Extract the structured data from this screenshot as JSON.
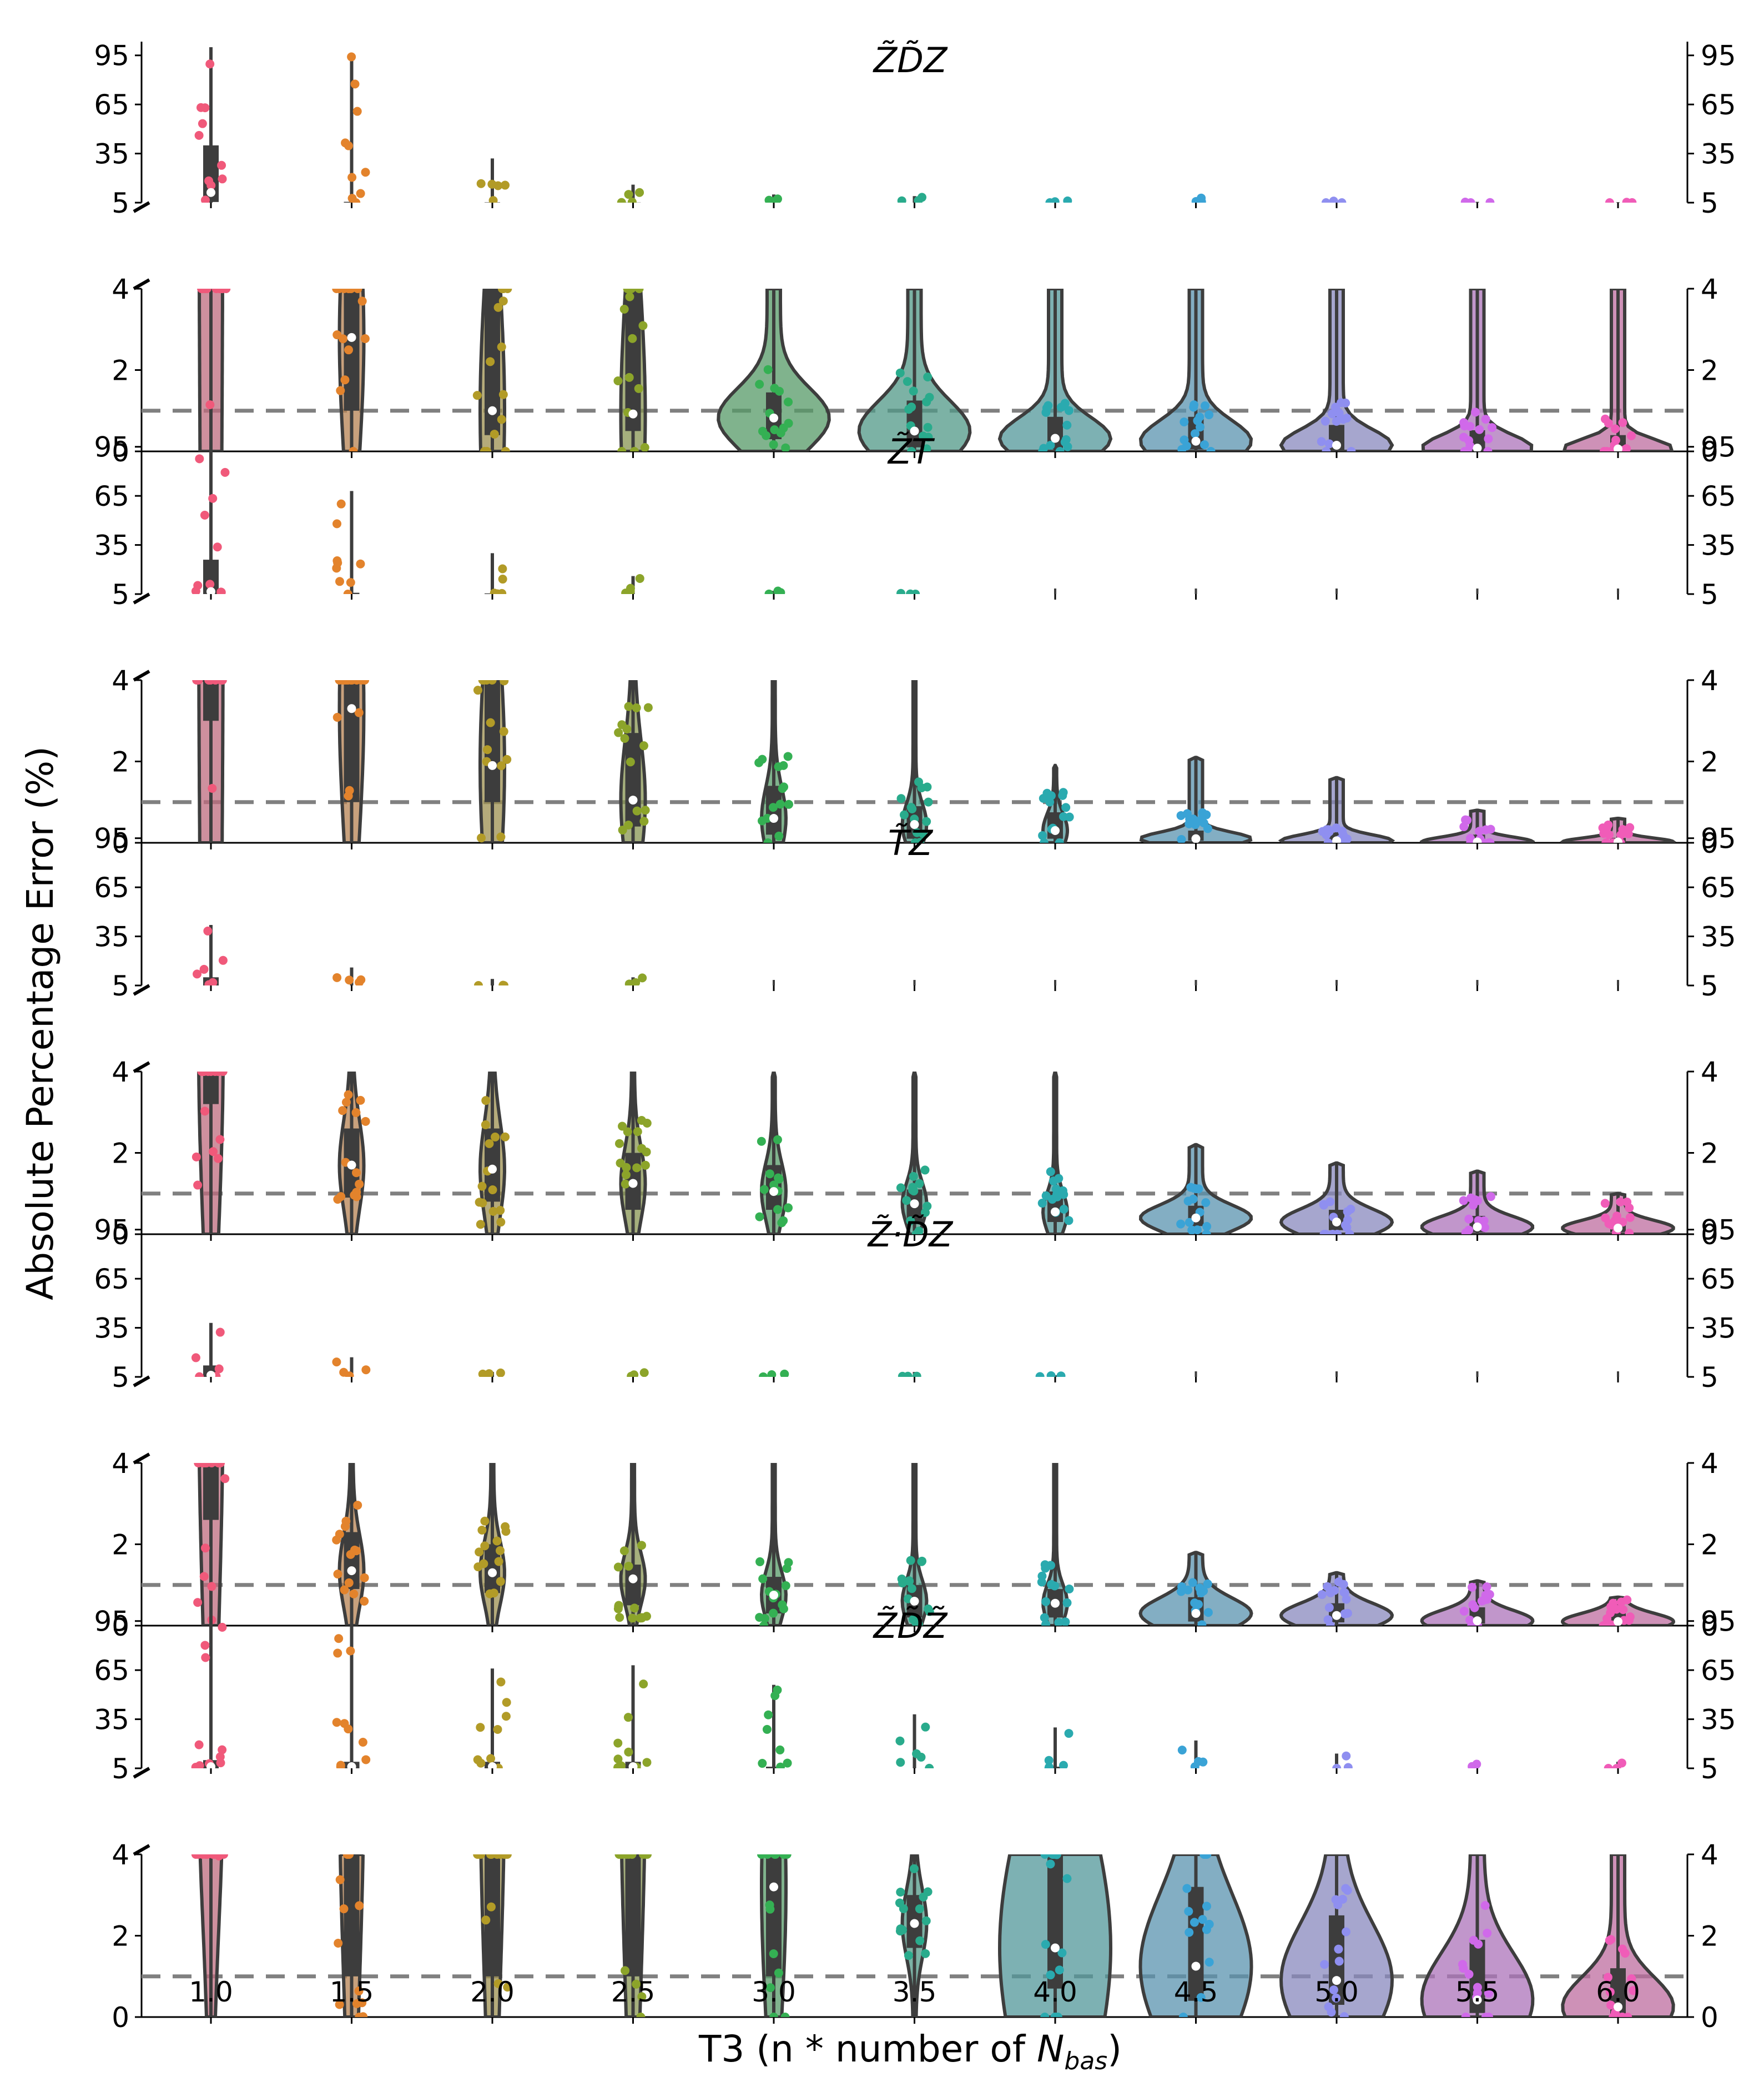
{
  "chart_data": {
    "type": "violin",
    "ylabel": "Absolute Percentage Error (%)",
    "xlabel_main": "T3 (n * number of ",
    "xlabel_sym": "N",
    "xlabel_sub": "bas",
    "xlabel_close": ")",
    "x_categories": [
      "1.0",
      "1.5",
      "2.0",
      "2.5",
      "3.0",
      "3.5",
      "4.0",
      "4.5",
      "5.0",
      "5.5",
      "6.0"
    ],
    "upper_ylim": [
      5,
      100
    ],
    "upper_ticks": [
      "95",
      "65",
      "35",
      "5"
    ],
    "lower_ylim": [
      0,
      4
    ],
    "lower_ticks": [
      "4",
      "2",
      "0"
    ],
    "reference_line": 1,
    "colors": [
      "#f0597a",
      "#e3832c",
      "#b29b27",
      "#8ca42a",
      "#34b053",
      "#29ab8c",
      "#2aaaaf",
      "#3aa3d6",
      "#8f8ff0",
      "#d069ea",
      "#f05cb8"
    ],
    "panels": [
      {
        "title": "Z̃D̃Z",
        "medians": [
          11.2,
          2.8,
          1.0,
          0.92,
          0.82,
          0.5,
          0.32,
          0.25,
          0.15,
          0.08,
          0.06
        ],
        "q1": [
          5.4,
          1.0,
          0.4,
          0.5,
          0.3,
          0.1,
          0.05,
          0.05,
          0.04,
          0.02,
          0.02
        ],
        "q3": [
          40,
          5.5,
          5.2,
          5.1,
          1.45,
          1.25,
          0.85,
          0.85,
          0.65,
          0.52,
          0.4
        ],
        "maxima": [
          100,
          96,
          32,
          16,
          10,
          9,
          8,
          8,
          6,
          5.5,
          5.3
        ],
        "violin_fill": [
          false,
          false,
          false,
          false,
          true,
          true,
          true,
          true,
          true,
          true,
          true
        ]
      },
      {
        "title": "Z̃T",
        "medians": [
          6.5,
          3.3,
          1.9,
          1.05,
          0.6,
          0.45,
          0.3,
          0.1,
          0.05,
          0.02,
          0.02
        ],
        "q1": [
          3.0,
          1.0,
          1.0,
          0.4,
          0.2,
          0.1,
          0.1,
          0.05,
          0.02,
          0.01,
          0.01
        ],
        "q3": [
          26,
          5.8,
          5.4,
          2.7,
          1.4,
          0.9,
          0.75,
          0.3,
          0.25,
          0.2,
          0.12
        ],
        "maxima": [
          100,
          68,
          30,
          16,
          7,
          5.5,
          1.9,
          2.1,
          1.6,
          0.8,
          0.6
        ],
        "violin_fill": [
          false,
          false,
          false,
          false,
          false,
          false,
          false,
          true,
          true,
          true,
          true
        ]
      },
      {
        "title": "T̃Z",
        "medians": [
          4.5,
          1.7,
          1.6,
          1.25,
          1.05,
          0.75,
          0.55,
          0.4,
          0.3,
          0.18,
          0.15
        ],
        "q1": [
          3.2,
          0.9,
          0.8,
          0.6,
          0.6,
          0.3,
          0.3,
          0.2,
          0.1,
          0.05,
          0.05
        ],
        "q3": [
          10,
          2.6,
          2.6,
          2.0,
          1.7,
          1.1,
          1.05,
          0.7,
          0.6,
          0.45,
          0.35
        ],
        "maxima": [
          42,
          16,
          9,
          10,
          4,
          4,
          4,
          2.2,
          1.75,
          1.55,
          1.0
        ],
        "violin_fill": [
          false,
          false,
          false,
          false,
          false,
          false,
          false,
          true,
          true,
          true,
          true
        ]
      },
      {
        "title": "Z̃·D̃Z",
        "medians": [
          6,
          1.35,
          1.3,
          1.15,
          0.75,
          0.6,
          0.55,
          0.3,
          0.25,
          0.12,
          0.1
        ],
        "q1": [
          2.6,
          0.9,
          0.8,
          0.5,
          0.3,
          0.2,
          0.2,
          0.1,
          0.08,
          0.05,
          0.03
        ],
        "q3": [
          12,
          2.3,
          2.0,
          1.5,
          1.2,
          1.0,
          0.9,
          0.7,
          0.55,
          0.45,
          0.35
        ],
        "maxima": [
          38,
          17,
          8,
          8,
          7,
          8,
          6,
          1.8,
          1.3,
          1.1,
          0.7
        ],
        "violin_fill": [
          false,
          false,
          false,
          false,
          false,
          false,
          false,
          true,
          true,
          true,
          true
        ]
      },
      {
        "title": "Z̃D̃Z̃",
        "medians": [
          6,
          6,
          6,
          6,
          3.2,
          2.3,
          1.7,
          1.25,
          0.9,
          0.42,
          0.25
        ],
        "q1": [
          4.1,
          1.0,
          1.0,
          1.0,
          1.0,
          1.7,
          0.7,
          0.4,
          0.3,
          0.1,
          0.05
        ],
        "q3": [
          10,
          9,
          9,
          9,
          6,
          3.0,
          6,
          3.2,
          2.5,
          1.9,
          1.2
        ],
        "maxima": [
          100,
          96,
          66,
          68,
          56,
          38,
          30,
          22,
          14,
          10,
          9
        ],
        "violin_fill": [
          false,
          false,
          false,
          false,
          false,
          false,
          true,
          true,
          true,
          true,
          true
        ]
      }
    ]
  }
}
